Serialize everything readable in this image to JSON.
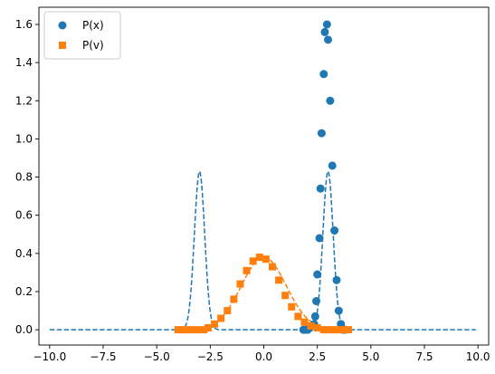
{
  "chart_data": {
    "type": "scatter",
    "title": "",
    "xlabel": "",
    "ylabel": "",
    "xlim": [
      -10.5,
      10.5
    ],
    "ylim": [
      -0.08,
      1.69
    ],
    "xticks": [
      -10.0,
      -7.5,
      -5.0,
      -2.5,
      0.0,
      2.5,
      5.0,
      7.5,
      10.0
    ],
    "yticks": [
      0.0,
      0.2,
      0.4,
      0.6,
      0.8,
      1.0,
      1.2,
      1.4,
      1.6
    ],
    "xtick_labels": [
      "−10.0",
      "−7.5",
      "−5.0",
      "−2.5",
      "0.0",
      "2.5",
      "5.0",
      "7.5",
      "10.0"
    ],
    "ytick_labels": [
      "0.0",
      "0.2",
      "0.4",
      "0.6",
      "0.8",
      "1.0",
      "1.2",
      "1.4",
      "1.6"
    ],
    "grid": false,
    "legend_position": "upper-left",
    "series": [
      {
        "name": "P(x)",
        "kind": "scatter",
        "marker": "circle",
        "color": "#1f77b4",
        "points": [
          [
            1.85,
            0.0
          ],
          [
            1.95,
            0.0
          ],
          [
            2.05,
            0.0
          ],
          [
            2.15,
            0.01
          ],
          [
            2.25,
            0.02
          ],
          [
            2.35,
            0.03
          ],
          [
            2.4,
            0.07
          ],
          [
            2.45,
            0.15
          ],
          [
            2.5,
            0.29
          ],
          [
            2.6,
            0.48
          ],
          [
            2.65,
            0.74
          ],
          [
            2.7,
            1.03
          ],
          [
            2.8,
            1.34
          ],
          [
            2.85,
            1.56
          ],
          [
            2.95,
            1.6
          ],
          [
            3.0,
            1.52
          ],
          [
            3.1,
            1.2
          ],
          [
            3.2,
            0.86
          ],
          [
            3.3,
            0.52
          ],
          [
            3.4,
            0.26
          ],
          [
            3.5,
            0.1
          ],
          [
            3.6,
            0.03
          ],
          [
            3.7,
            0.0
          ],
          [
            3.8,
            0.0
          ]
        ]
      },
      {
        "name": "P(v)",
        "kind": "scatter",
        "marker": "square",
        "color": "#ff7f0e",
        "points": [
          [
            -4.0,
            0.0
          ],
          [
            -3.7,
            0.0
          ],
          [
            -3.4,
            0.0
          ],
          [
            -3.1,
            0.0
          ],
          [
            -2.8,
            0.0
          ],
          [
            -2.6,
            0.01
          ],
          [
            -2.3,
            0.03
          ],
          [
            -2.0,
            0.06
          ],
          [
            -1.7,
            0.1
          ],
          [
            -1.4,
            0.16
          ],
          [
            -1.1,
            0.24
          ],
          [
            -0.8,
            0.31
          ],
          [
            -0.5,
            0.36
          ],
          [
            -0.2,
            0.38
          ],
          [
            0.1,
            0.37
          ],
          [
            0.4,
            0.33
          ],
          [
            0.7,
            0.26
          ],
          [
            1.0,
            0.18
          ],
          [
            1.3,
            0.12
          ],
          [
            1.6,
            0.07
          ],
          [
            1.9,
            0.04
          ],
          [
            2.2,
            0.02
          ],
          [
            2.5,
            0.01
          ],
          [
            2.8,
            0.0
          ],
          [
            3.1,
            0.0
          ],
          [
            3.4,
            0.0
          ],
          [
            3.7,
            0.0
          ],
          [
            3.95,
            0.0
          ]
        ]
      },
      {
        "kind": "line",
        "style": "dashed",
        "color": "#1f77b4",
        "components": [
          {
            "type": "gaussian",
            "mean": -3.0,
            "sd": 0.24,
            "amplitude": 0.83
          },
          {
            "type": "gaussian",
            "mean": 3.0,
            "sd": 0.24,
            "amplitude": 0.83
          }
        ],
        "x_range": [
          -10.0,
          9.9
        ]
      },
      {
        "kind": "line",
        "style": "dashed",
        "color": "#ff7f0e",
        "components": [
          {
            "type": "gaussian",
            "mean": 0.0,
            "sd": 1.05,
            "amplitude": 0.38
          }
        ],
        "x_range": [
          -4.0,
          3.95
        ]
      }
    ]
  }
}
